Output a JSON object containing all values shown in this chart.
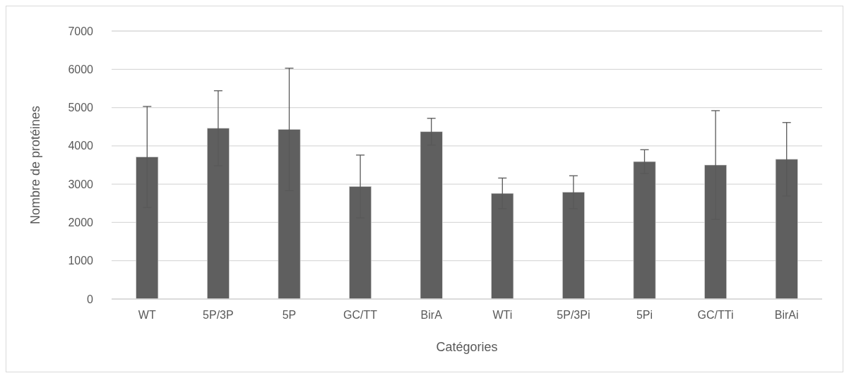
{
  "chart_data": {
    "type": "bar",
    "xlabel": "Catégories",
    "ylabel": "Nombre de protéines",
    "categories": [
      "WT",
      "5P/3P",
      "5P",
      "GC/TT",
      "BirA",
      "WTi",
      "5P/3Pi",
      "5Pi",
      "GC/TTi",
      "BirAi"
    ],
    "values": [
      3710,
      4460,
      4430,
      2940,
      4370,
      2760,
      2790,
      3590,
      3500,
      3650
    ],
    "errors": [
      1320,
      980,
      1600,
      820,
      350,
      400,
      430,
      310,
      1420,
      960
    ],
    "color": "#5f5f5f",
    "ylim": [
      0,
      7000
    ],
    "yticks": [
      0,
      1000,
      2000,
      3000,
      4000,
      5000,
      6000,
      7000
    ],
    "grid": "y"
  }
}
